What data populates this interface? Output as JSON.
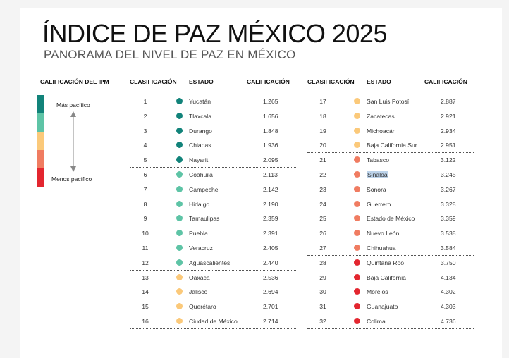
{
  "title": "ÍNDICE DE PAZ MÉXICO 2025",
  "subtitle": "PANORAMA DEL NIVEL DE PAZ EN MÉXICO",
  "legend": {
    "title": "CALIFICACIÓN DEL IPM",
    "top_label": "Más pacífico",
    "bottom_label": "Menos pacífico",
    "colors": [
      "#12837a",
      "#5ec4a6",
      "#fbc97a",
      "#f07c61",
      "#e3262f"
    ]
  },
  "columns": {
    "rank": "CLASIFICACIÓN",
    "state": "ESTADO",
    "score": "CALIFICACIÓN"
  },
  "tier_colors": {
    "1": "#12837a",
    "2": "#5ec4a6",
    "3": "#fbc97a",
    "4": "#f07c61",
    "5": "#e3262f"
  },
  "rows_left": [
    {
      "rank": "1",
      "state": "Yucatán",
      "score": "1.265",
      "tier": 1
    },
    {
      "rank": "2",
      "state": "Tlaxcala",
      "score": "1.656",
      "tier": 1
    },
    {
      "rank": "3",
      "state": "Durango",
      "score": "1.848",
      "tier": 1
    },
    {
      "rank": "4",
      "state": "Chiapas",
      "score": "1.936",
      "tier": 1
    },
    {
      "rank": "5",
      "state": "Nayarit",
      "score": "2.095",
      "tier": 1
    },
    {
      "rank": "6",
      "state": "Coahuila",
      "score": "2.113",
      "tier": 2
    },
    {
      "rank": "7",
      "state": "Campeche",
      "score": "2.142",
      "tier": 2
    },
    {
      "rank": "8",
      "state": "Hidalgo",
      "score": "2.190",
      "tier": 2
    },
    {
      "rank": "9",
      "state": "Tamaulipas",
      "score": "2.359",
      "tier": 2
    },
    {
      "rank": "10",
      "state": "Puebla",
      "score": "2.391",
      "tier": 2
    },
    {
      "rank": "11",
      "state": "Veracruz",
      "score": "2.405",
      "tier": 2
    },
    {
      "rank": "12",
      "state": "Aguascalientes",
      "score": "2.440",
      "tier": 2
    },
    {
      "rank": "13",
      "state": "Oaxaca",
      "score": "2.536",
      "tier": 3
    },
    {
      "rank": "14",
      "state": "Jalisco",
      "score": "2.694",
      "tier": 3
    },
    {
      "rank": "15",
      "state": "Querétaro",
      "score": "2.701",
      "tier": 3
    },
    {
      "rank": "16",
      "state": "Ciudad de México",
      "score": "2.714",
      "tier": 3
    }
  ],
  "rows_right": [
    {
      "rank": "17",
      "state": "San Luis Potosí",
      "score": "2.887",
      "tier": 3
    },
    {
      "rank": "18",
      "state": "Zacatecas",
      "score": "2.921",
      "tier": 3
    },
    {
      "rank": "19",
      "state": "Michoacán",
      "score": "2.934",
      "tier": 3
    },
    {
      "rank": "20",
      "state": "Baja California Sur",
      "score": "2.951",
      "tier": 3
    },
    {
      "rank": "21",
      "state": "Tabasco",
      "score": "3.122",
      "tier": 4
    },
    {
      "rank": "22",
      "state": "Sinaloa",
      "score": "3.245",
      "tier": 4,
      "highlight": true
    },
    {
      "rank": "23",
      "state": "Sonora",
      "score": "3.267",
      "tier": 4
    },
    {
      "rank": "24",
      "state": "Guerrero",
      "score": "3.328",
      "tier": 4
    },
    {
      "rank": "25",
      "state": "Estado de México",
      "score": "3.359",
      "tier": 4
    },
    {
      "rank": "26",
      "state": "Nuevo León",
      "score": "3.538",
      "tier": 4
    },
    {
      "rank": "27",
      "state": "Chihuahua",
      "score": "3.584",
      "tier": 4
    },
    {
      "rank": "28",
      "state": "Quintana Roo",
      "score": "3.750",
      "tier": 5
    },
    {
      "rank": "29",
      "state": "Baja California",
      "score": "4.134",
      "tier": 5
    },
    {
      "rank": "30",
      "state": "Morelos",
      "score": "4.302",
      "tier": 5
    },
    {
      "rank": "31",
      "state": "Guanajuato",
      "score": "4.303",
      "tier": 5
    },
    {
      "rank": "32",
      "state": "Colima",
      "score": "4.736",
      "tier": 5
    }
  ]
}
